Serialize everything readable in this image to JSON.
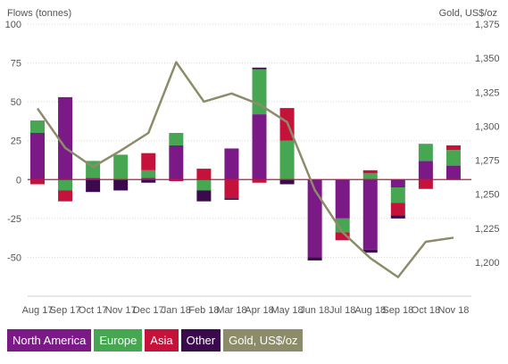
{
  "chart_data": {
    "type": "bar",
    "stacked": true,
    "ylabel": "Flows (tonnes)",
    "y2label": "Gold, US$/oz",
    "ylim": [
      -75,
      100
    ],
    "y2lim": [
      1175,
      1375
    ],
    "yticks": [
      "100",
      "75",
      "50",
      "25",
      "0",
      "-25",
      "-50"
    ],
    "y2ticks": [
      "1,375",
      "1,350",
      "1,325",
      "1,300",
      "1,275",
      "1,250",
      "1,225",
      "1,200"
    ],
    "categories": [
      "Aug 17",
      "Sep 17",
      "Oct 17",
      "Nov 17",
      "Dec 17",
      "Jan 18",
      "Feb 18",
      "Mar 18",
      "Apr 18",
      "May 18",
      "Jun 18",
      "Jul 18",
      "Aug 18",
      "Sep 18",
      "Oct 18",
      "Nov 18"
    ],
    "series": [
      {
        "name": "North America",
        "color": "#7b1a87",
        "values": [
          30,
          53,
          1,
          0,
          1,
          22,
          0,
          20,
          42,
          0,
          -50,
          -25,
          -45,
          -5,
          12,
          9
        ]
      },
      {
        "name": "Europe",
        "color": "#47a652",
        "values": [
          8,
          -7,
          11,
          16,
          5,
          8,
          -7,
          0,
          29,
          25,
          0,
          -9,
          4,
          -10,
          11,
          10
        ]
      },
      {
        "name": "Asia",
        "color": "#c4123a",
        "values": [
          -3,
          -7,
          0,
          0,
          11,
          -1,
          7,
          -12,
          -2,
          21,
          0,
          -5,
          2,
          -8,
          -6,
          3
        ]
      },
      {
        "name": "Other",
        "color": "#3b0a4d",
        "values": [
          0,
          0,
          -8,
          -7,
          -2,
          0,
          -7,
          -1,
          1,
          -3,
          -2,
          0,
          -2,
          -2,
          0,
          0
        ]
      }
    ],
    "line": {
      "name": "Gold, US$/oz",
      "color": "#8c8c6a",
      "values": [
        1313,
        1284,
        1270,
        1282,
        1295,
        1347,
        1318,
        1324,
        1316,
        1303,
        1253,
        1222,
        1203,
        1189,
        1215,
        1218
      ]
    },
    "legend_position": "bottom-left",
    "grid": true
  }
}
